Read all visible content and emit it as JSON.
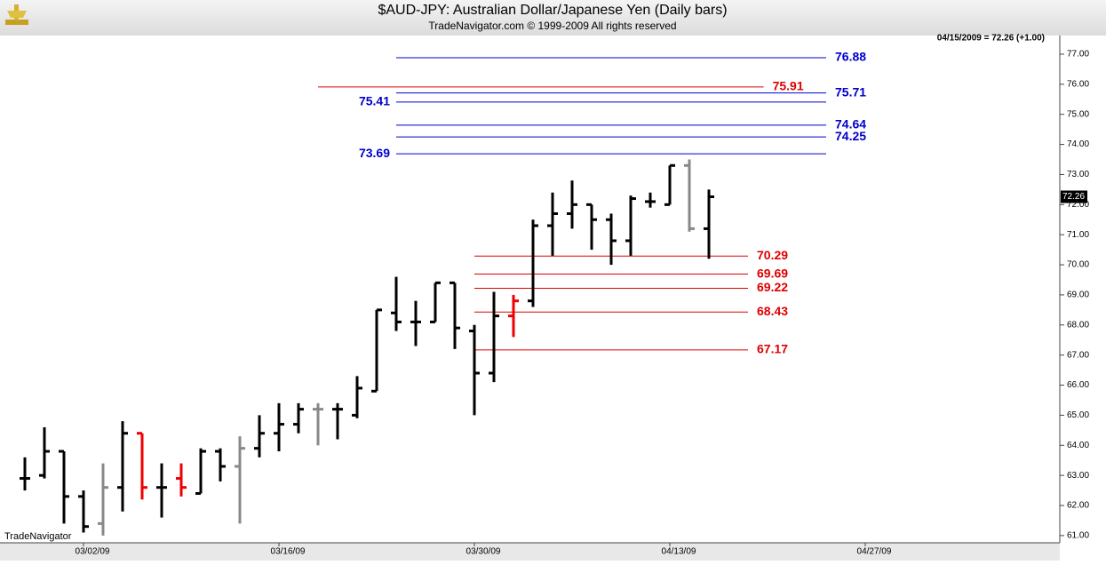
{
  "chart_data": {
    "type": "ohlc",
    "title": "$AUD-JPY:  Australian Dollar/Japanese Yen  (Daily bars)",
    "subtitle": "TradeNavigator.com © 1999-2009 All rights reserved",
    "info": "04/15/2009 = 72.26 (+1.00)",
    "watermark": "TradeNavigator",
    "categories": [
      null,
      null,
      null,
      "03/02/09",
      null,
      null,
      null,
      null,
      null,
      null,
      null,
      null,
      null,
      "03/16/09",
      null,
      null,
      null,
      null,
      null,
      null,
      null,
      null,
      null,
      "03/30/09",
      null,
      null,
      null,
      null,
      null,
      null,
      null,
      null,
      null,
      "04/13/09",
      null,
      null,
      null,
      null,
      null,
      null,
      null,
      null,
      null,
      "04/27/09",
      null,
      null,
      null,
      null,
      null,
      null,
      null,
      null,
      null
    ],
    "open": [
      62.9,
      63.0,
      63.8,
      62.3,
      61.4,
      62.6,
      64.4,
      62.6,
      62.9,
      62.4,
      63.8,
      63.3,
      63.9,
      64.4,
      64.7,
      65.2,
      65.2,
      65.0,
      65.8,
      68.4,
      68.1,
      68.1,
      69.4,
      67.8,
      66.4,
      68.3,
      68.8,
      71.3,
      71.7,
      72.0,
      71.5,
      70.8,
      72.1,
      72.0,
      73.3,
      71.2,
      null,
      null,
      null,
      null,
      null,
      null,
      null,
      null,
      null,
      null,
      null,
      null,
      null,
      null,
      null,
      null,
      null
    ],
    "high": [
      63.6,
      64.6,
      63.8,
      62.5,
      63.4,
      64.8,
      64.4,
      63.4,
      63.4,
      63.9,
      63.9,
      64.3,
      65.0,
      65.4,
      65.4,
      65.4,
      65.4,
      66.3,
      68.5,
      69.6,
      68.8,
      69.4,
      69.4,
      68.0,
      69.1,
      69.0,
      71.5,
      72.4,
      72.8,
      72.0,
      71.7,
      72.3,
      72.4,
      73.3,
      73.5,
      72.5,
      null,
      null,
      null,
      null,
      null,
      null,
      null,
      null,
      null,
      null,
      null,
      null,
      null,
      null,
      null,
      null,
      null
    ],
    "low": [
      62.5,
      62.9,
      61.4,
      61.1,
      61.0,
      61.8,
      62.2,
      61.6,
      62.3,
      62.4,
      62.8,
      61.4,
      63.6,
      63.8,
      64.4,
      64.0,
      64.2,
      64.9,
      65.8,
      67.8,
      67.3,
      68.1,
      67.2,
      65.0,
      66.1,
      67.6,
      68.6,
      70.3,
      71.2,
      70.5,
      70.0,
      70.3,
      71.9,
      72.0,
      71.1,
      70.2,
      null,
      null,
      null,
      null,
      null,
      null,
      null,
      null,
      null,
      null,
      null,
      null,
      null,
      null,
      null,
      null,
      null
    ],
    "close": [
      62.9,
      63.8,
      62.3,
      61.3,
      62.6,
      64.4,
      62.6,
      62.6,
      62.6,
      63.8,
      63.3,
      63.9,
      64.4,
      64.7,
      65.2,
      65.2,
      65.2,
      65.9,
      68.5,
      68.1,
      68.1,
      69.4,
      67.9,
      66.4,
      68.3,
      68.8,
      71.3,
      71.7,
      72.0,
      71.5,
      70.8,
      72.2,
      72.1,
      73.3,
      71.2,
      72.26,
      null,
      null,
      null,
      null,
      null,
      null,
      null,
      null,
      null,
      null,
      null,
      null,
      null,
      null,
      null,
      null,
      null
    ],
    "bar_colors": [
      "#000000",
      "#000000",
      "#000000",
      "#000000",
      "#888888",
      "#000000",
      "#ee0000",
      "#000000",
      "#ee0000",
      "#000000",
      "#000000",
      "#888888",
      "#000000",
      "#000000",
      "#000000",
      "#888888",
      "#000000",
      "#000000",
      "#000000",
      "#000000",
      "#000000",
      "#000000",
      "#000000",
      "#000000",
      "#000000",
      "#ee0000",
      "#000000",
      "#000000",
      "#000000",
      "#000000",
      "#000000",
      "#000000",
      "#000000",
      "#000000",
      "#888888",
      "#000000",
      null,
      null,
      null,
      null,
      null,
      null,
      null,
      null,
      null,
      null,
      null,
      null,
      null,
      null,
      null,
      null,
      null
    ],
    "levels": [
      {
        "value": 76.88,
        "color": "#0000cc"
      },
      {
        "value": 75.91,
        "color": "#dd0000"
      },
      {
        "value": 75.71,
        "color": "#0000cc"
      },
      {
        "value": 75.41,
        "color": "#0000cc"
      },
      {
        "value": 74.64,
        "color": "#0000cc"
      },
      {
        "value": 74.25,
        "color": "#0000cc"
      },
      {
        "value": 73.69,
        "color": "#0000cc"
      },
      {
        "value": 70.29,
        "color": "#dd0000"
      },
      {
        "value": 69.69,
        "color": "#dd0000"
      },
      {
        "value": 69.22,
        "color": "#dd0000"
      },
      {
        "value": 68.43,
        "color": "#dd0000"
      },
      {
        "value": 67.17,
        "color": "#dd0000"
      }
    ],
    "ylim": [
      60.79,
      77.56
    ],
    "yticks": [
      {
        "value": 61,
        "label": "61.00"
      },
      {
        "value": 62,
        "label": "62.00"
      },
      {
        "value": 63,
        "label": "63.00"
      },
      {
        "value": 64,
        "label": "64.00"
      },
      {
        "value": 65,
        "label": "65.00"
      },
      {
        "value": 66,
        "label": "66.00"
      },
      {
        "value": 67,
        "label": "67.00"
      },
      {
        "value": 68,
        "label": "68.00"
      },
      {
        "value": 69,
        "label": "69.00"
      },
      {
        "value": 70,
        "label": "70.00"
      },
      {
        "value": 71,
        "label": "71.00"
      },
      {
        "value": 72,
        "label": "72.00"
      },
      {
        "value": 73,
        "label": "73.00"
      },
      {
        "value": 74,
        "label": "74.00"
      },
      {
        "value": 75,
        "label": "75.00"
      },
      {
        "value": 76,
        "label": "76.00"
      },
      {
        "value": 77,
        "label": "77.00"
      }
    ]
  }
}
